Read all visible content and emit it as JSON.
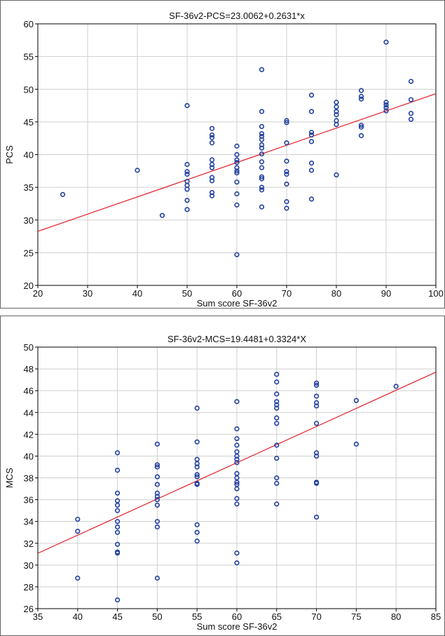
{
  "chart_data": [
    {
      "type": "scatter",
      "title": "SF-36v2-PCS=23.0062+0.2631*x",
      "xlabel": "Sum score SF-36v2",
      "ylabel": "PCS",
      "xlim": [
        20,
        100
      ],
      "ylim": [
        20,
        60
      ],
      "xticks": [
        20,
        30,
        40,
        50,
        60,
        70,
        80,
        90,
        100
      ],
      "yticks": [
        20,
        25,
        30,
        35,
        40,
        45,
        50,
        55,
        60
      ],
      "grid": true,
      "marker_color": "#1f3f9e",
      "line_color": "#e0202a",
      "regression": {
        "intercept": 23.0062,
        "slope": 0.2631
      },
      "points": [
        [
          25,
          33.9
        ],
        [
          40,
          37.6
        ],
        [
          45,
          30.7
        ],
        [
          50,
          47.5
        ],
        [
          50,
          38.5
        ],
        [
          50,
          37.4
        ],
        [
          50,
          37.0
        ],
        [
          50,
          35.9
        ],
        [
          50,
          35.3
        ],
        [
          50,
          34.7
        ],
        [
          50,
          33.0
        ],
        [
          50,
          31.6
        ],
        [
          55,
          44.0
        ],
        [
          55,
          43.0
        ],
        [
          55,
          42.6
        ],
        [
          55,
          41.8
        ],
        [
          55,
          39.2
        ],
        [
          55,
          38.5
        ],
        [
          55,
          38.0
        ],
        [
          55,
          36.5
        ],
        [
          55,
          36.0
        ],
        [
          55,
          34.2
        ],
        [
          55,
          33.7
        ],
        [
          60,
          41.3
        ],
        [
          60,
          40.0
        ],
        [
          60,
          39.2
        ],
        [
          60,
          38.8
        ],
        [
          60,
          38.0
        ],
        [
          60,
          37.5
        ],
        [
          60,
          37.2
        ],
        [
          60,
          35.8
        ],
        [
          60,
          34.0
        ],
        [
          60,
          32.3
        ],
        [
          60,
          24.7
        ],
        [
          65,
          53.0
        ],
        [
          65,
          46.6
        ],
        [
          65,
          44.3
        ],
        [
          65,
          43.2
        ],
        [
          65,
          42.8
        ],
        [
          65,
          42.3
        ],
        [
          65,
          41.5
        ],
        [
          65,
          41.0
        ],
        [
          65,
          40.1
        ],
        [
          65,
          38.9
        ],
        [
          65,
          38.0
        ],
        [
          65,
          36.6
        ],
        [
          65,
          36.3
        ],
        [
          65,
          35.0
        ],
        [
          65,
          34.6
        ],
        [
          65,
          32.0
        ],
        [
          70,
          45.2
        ],
        [
          70,
          44.9
        ],
        [
          70,
          41.8
        ],
        [
          70,
          39.0
        ],
        [
          70,
          37.4
        ],
        [
          70,
          37.0
        ],
        [
          70,
          35.5
        ],
        [
          70,
          32.8
        ],
        [
          70,
          31.8
        ],
        [
          75,
          49.1
        ],
        [
          75,
          46.6
        ],
        [
          75,
          43.4
        ],
        [
          75,
          43.0
        ],
        [
          75,
          42.0
        ],
        [
          75,
          38.7
        ],
        [
          75,
          37.6
        ],
        [
          75,
          33.2
        ],
        [
          80,
          48.0
        ],
        [
          80,
          47.3
        ],
        [
          80,
          46.6
        ],
        [
          80,
          46.1
        ],
        [
          80,
          45.2
        ],
        [
          80,
          44.6
        ],
        [
          80,
          36.9
        ],
        [
          85,
          49.8
        ],
        [
          85,
          48.9
        ],
        [
          85,
          48.5
        ],
        [
          85,
          44.5
        ],
        [
          85,
          44.2
        ],
        [
          85,
          42.9
        ],
        [
          90,
          57.2
        ],
        [
          90,
          48.0
        ],
        [
          90,
          47.6
        ],
        [
          90,
          47.2
        ],
        [
          90,
          46.7
        ],
        [
          95,
          51.2
        ],
        [
          95,
          48.4
        ],
        [
          95,
          46.3
        ],
        [
          95,
          45.4
        ]
      ]
    },
    {
      "type": "scatter",
      "title": "SF-36v2-MCS=19.4481+0.3324*X",
      "xlabel": "Sum score SF-36v2",
      "ylabel": "MCS",
      "xlim": [
        35,
        85
      ],
      "ylim": [
        26,
        50
      ],
      "xticks": [
        35,
        40,
        45,
        50,
        55,
        60,
        65,
        70,
        75,
        80,
        85
      ],
      "yticks": [
        26,
        28,
        30,
        32,
        34,
        36,
        38,
        40,
        42,
        44,
        46,
        48,
        50
      ],
      "grid": true,
      "marker_color": "#1f3f9e",
      "line_color": "#e0202a",
      "regression": {
        "intercept": 19.4481,
        "slope": 0.3324
      },
      "points": [
        [
          40,
          34.2
        ],
        [
          40,
          33.1
        ],
        [
          40,
          28.8
        ],
        [
          45,
          40.3
        ],
        [
          45,
          38.7
        ],
        [
          45,
          36.6
        ],
        [
          45,
          35.9
        ],
        [
          45,
          35.5
        ],
        [
          45,
          35.0
        ],
        [
          45,
          34.0
        ],
        [
          45,
          33.5
        ],
        [
          45,
          33.0
        ],
        [
          45,
          31.9
        ],
        [
          45,
          31.2
        ],
        [
          45,
          31.1
        ],
        [
          45,
          26.8
        ],
        [
          50,
          41.1
        ],
        [
          50,
          39.2
        ],
        [
          50,
          39.0
        ],
        [
          50,
          38.1
        ],
        [
          50,
          37.4
        ],
        [
          50,
          36.6
        ],
        [
          50,
          36.3
        ],
        [
          50,
          36.0
        ],
        [
          50,
          35.5
        ],
        [
          50,
          34.0
        ],
        [
          50,
          33.5
        ],
        [
          50,
          28.8
        ],
        [
          55,
          44.4
        ],
        [
          55,
          41.3
        ],
        [
          55,
          39.7
        ],
        [
          55,
          39.3
        ],
        [
          55,
          39.0
        ],
        [
          55,
          38.3
        ],
        [
          55,
          38.1
        ],
        [
          55,
          37.5
        ],
        [
          55,
          37.4
        ],
        [
          55,
          33.7
        ],
        [
          55,
          33.0
        ],
        [
          55,
          32.2
        ],
        [
          60,
          45.0
        ],
        [
          60,
          42.5
        ],
        [
          60,
          41.6
        ],
        [
          60,
          41.0
        ],
        [
          60,
          40.4
        ],
        [
          60,
          40.0
        ],
        [
          60,
          39.7
        ],
        [
          60,
          39.4
        ],
        [
          60,
          38.4
        ],
        [
          60,
          38.0
        ],
        [
          60,
          37.6
        ],
        [
          60,
          37.4
        ],
        [
          60,
          37.0
        ],
        [
          60,
          36.1
        ],
        [
          60,
          35.6
        ],
        [
          60,
          31.1
        ],
        [
          60,
          30.2
        ],
        [
          65,
          47.5
        ],
        [
          65,
          46.8
        ],
        [
          65,
          45.7
        ],
        [
          65,
          45.0
        ],
        [
          65,
          44.7
        ],
        [
          65,
          44.4
        ],
        [
          65,
          43.5
        ],
        [
          65,
          43.0
        ],
        [
          65,
          41.0
        ],
        [
          65,
          39.8
        ],
        [
          65,
          38.0
        ],
        [
          65,
          37.5
        ],
        [
          65,
          35.6
        ],
        [
          70,
          46.7
        ],
        [
          70,
          46.5
        ],
        [
          70,
          45.5
        ],
        [
          70,
          44.9
        ],
        [
          70,
          44.6
        ],
        [
          70,
          43.0
        ],
        [
          70,
          40.3
        ],
        [
          70,
          40.0
        ],
        [
          70,
          37.6
        ],
        [
          70,
          37.5
        ],
        [
          70,
          34.4
        ],
        [
          75,
          45.1
        ],
        [
          75,
          41.1
        ],
        [
          80,
          46.4
        ]
      ]
    }
  ]
}
